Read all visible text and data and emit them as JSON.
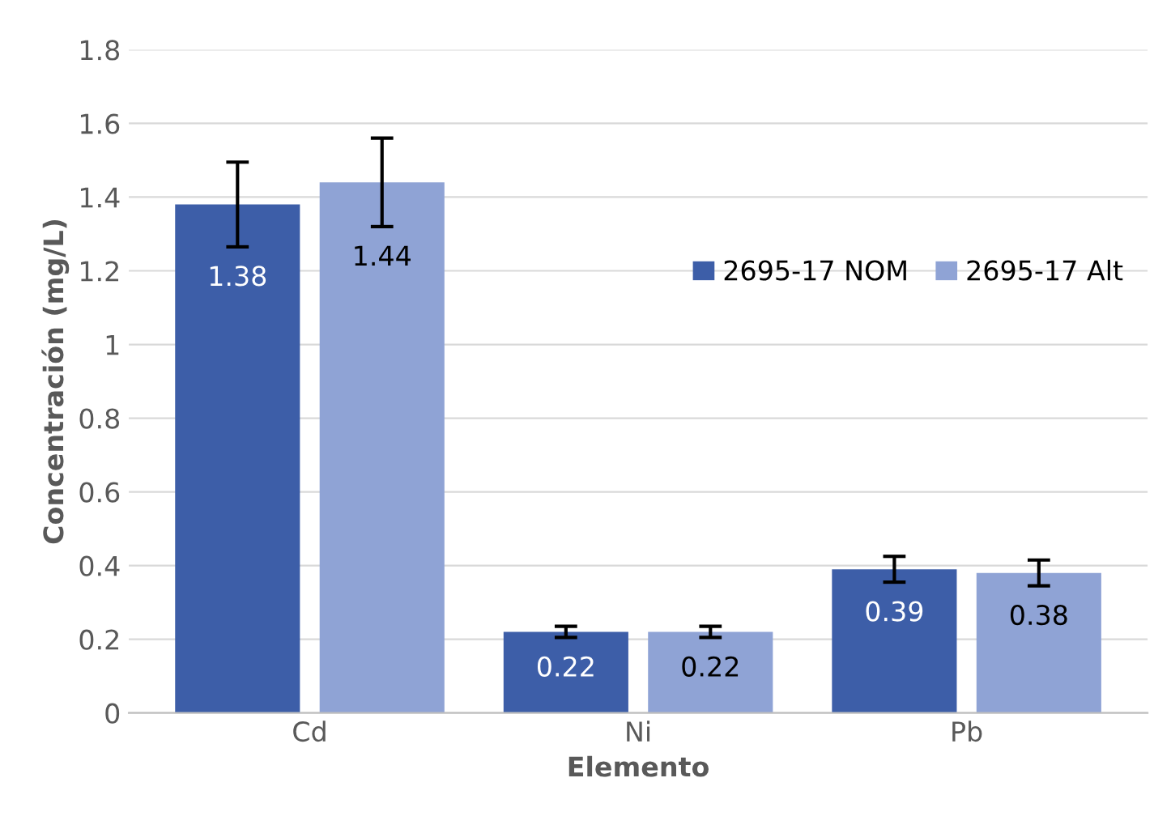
{
  "chart_data": {
    "type": "bar",
    "xlabel": "Elemento",
    "ylabel": "Concentración (mg/L)",
    "categories": [
      "Cd",
      "Ni",
      "Pb"
    ],
    "series": [
      {
        "name": "2695-17 NOM",
        "color": "#3d5ea8",
        "values": [
          1.38,
          0.22,
          0.39
        ],
        "errors": [
          0.115,
          0.015,
          0.035
        ]
      },
      {
        "name": "2695-17 Alt",
        "color": "#8fa3d5",
        "values": [
          1.44,
          0.22,
          0.38
        ],
        "errors": [
          0.12,
          0.015,
          0.035
        ]
      }
    ],
    "ylim": [
      0,
      1.8
    ],
    "yticks": [
      0,
      0.2,
      0.4,
      0.6,
      0.8,
      1,
      1.2,
      1.4,
      1.6,
      1.8
    ],
    "grid": "y",
    "legend": "right",
    "data_labels": true
  }
}
